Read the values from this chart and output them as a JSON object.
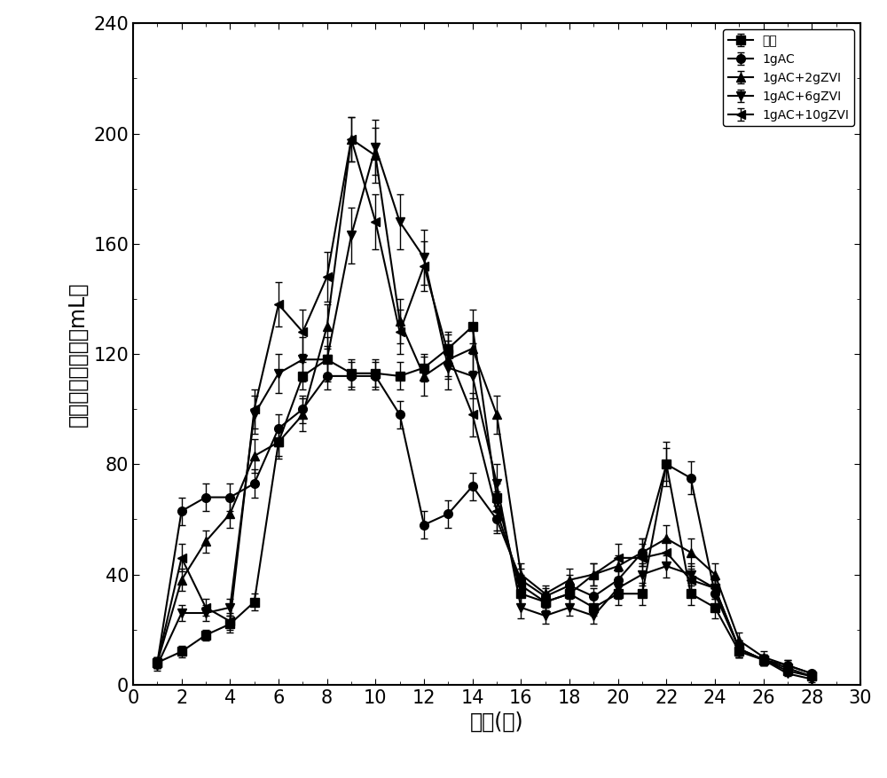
{
  "title": "",
  "xlabel": "时间(天)",
  "ylabel": "甲烷日均产气量（mL）",
  "xlim": [
    0,
    30
  ],
  "ylim": [
    0,
    240
  ],
  "xticks": [
    0,
    2,
    4,
    6,
    8,
    10,
    12,
    14,
    16,
    18,
    20,
    22,
    24,
    26,
    28,
    30
  ],
  "yticks": [
    0,
    40,
    80,
    120,
    160,
    200,
    240
  ],
  "series": [
    {
      "label": "空白",
      "marker": "s",
      "x": [
        1,
        2,
        3,
        4,
        5,
        6,
        7,
        8,
        9,
        10,
        11,
        12,
        13,
        14,
        15,
        16,
        17,
        18,
        19,
        20,
        21,
        22,
        23,
        24,
        25,
        26,
        27,
        28
      ],
      "y": [
        8,
        12,
        18,
        22,
        30,
        88,
        112,
        118,
        113,
        113,
        112,
        115,
        122,
        130,
        68,
        33,
        30,
        33,
        28,
        33,
        33,
        80,
        33,
        28,
        12,
        9,
        5,
        3
      ],
      "yerr": [
        2,
        2,
        2,
        3,
        3,
        5,
        5,
        5,
        5,
        5,
        5,
        5,
        5,
        6,
        5,
        4,
        3,
        4,
        3,
        4,
        4,
        6,
        4,
        4,
        2,
        2,
        1,
        1
      ]
    },
    {
      "label": "1gAC",
      "marker": "o",
      "x": [
        1,
        2,
        3,
        4,
        5,
        6,
        7,
        8,
        9,
        10,
        11,
        12,
        13,
        14,
        15,
        16,
        17,
        18,
        19,
        20,
        21,
        22,
        23,
        24,
        25,
        26,
        27,
        28
      ],
      "y": [
        8,
        63,
        68,
        68,
        73,
        93,
        100,
        112,
        112,
        112,
        98,
        58,
        62,
        72,
        60,
        38,
        32,
        36,
        32,
        38,
        48,
        80,
        75,
        33,
        13,
        9,
        7,
        4
      ],
      "yerr": [
        2,
        5,
        5,
        5,
        5,
        5,
        5,
        5,
        5,
        5,
        5,
        5,
        5,
        5,
        5,
        4,
        3,
        4,
        3,
        4,
        5,
        8,
        6,
        5,
        3,
        2,
        2,
        1
      ]
    },
    {
      "label": "1gAC+2gZVI",
      "marker": "^",
      "x": [
        1,
        2,
        3,
        4,
        5,
        6,
        7,
        8,
        9,
        10,
        11,
        12,
        13,
        14,
        15,
        16,
        17,
        18,
        19,
        20,
        21,
        22,
        23,
        24,
        25,
        26,
        27,
        28
      ],
      "y": [
        8,
        38,
        52,
        62,
        83,
        88,
        98,
        130,
        198,
        192,
        132,
        112,
        118,
        122,
        98,
        40,
        33,
        38,
        40,
        43,
        48,
        53,
        48,
        40,
        16,
        10,
        7,
        4
      ],
      "yerr": [
        2,
        4,
        4,
        5,
        6,
        6,
        6,
        8,
        8,
        10,
        8,
        7,
        7,
        8,
        7,
        4,
        3,
        4,
        4,
        4,
        5,
        5,
        5,
        4,
        3,
        2,
        2,
        1
      ]
    },
    {
      "label": "1gAC+6gZVI",
      "marker": "v",
      "x": [
        1,
        2,
        3,
        4,
        5,
        6,
        7,
        8,
        9,
        10,
        11,
        12,
        13,
        14,
        15,
        16,
        17,
        18,
        19,
        20,
        21,
        22,
        23,
        24,
        25,
        26,
        27,
        28
      ],
      "y": [
        7,
        26,
        26,
        28,
        98,
        113,
        118,
        118,
        163,
        195,
        168,
        155,
        115,
        112,
        73,
        28,
        25,
        28,
        25,
        35,
        40,
        43,
        40,
        35,
        13,
        9,
        4,
        2
      ],
      "yerr": [
        2,
        3,
        3,
        3,
        7,
        7,
        8,
        8,
        10,
        10,
        10,
        10,
        8,
        8,
        7,
        4,
        3,
        3,
        3,
        4,
        4,
        4,
        4,
        4,
        3,
        2,
        1,
        1
      ]
    },
    {
      "label": "1gAC+10gZVI",
      "marker": "<",
      "x": [
        1,
        2,
        3,
        4,
        5,
        6,
        7,
        8,
        9,
        10,
        11,
        12,
        13,
        14,
        15,
        16,
        17,
        18,
        19,
        20,
        21,
        22,
        23,
        24,
        25,
        26,
        27,
        28
      ],
      "y": [
        8,
        46,
        28,
        23,
        100,
        138,
        128,
        148,
        198,
        168,
        128,
        152,
        120,
        98,
        63,
        36,
        30,
        33,
        40,
        46,
        46,
        48,
        38,
        35,
        13,
        9,
        6,
        3
      ],
      "yerr": [
        2,
        5,
        3,
        3,
        7,
        8,
        8,
        9,
        8,
        10,
        8,
        9,
        8,
        8,
        7,
        4,
        3,
        4,
        4,
        5,
        5,
        5,
        4,
        4,
        3,
        2,
        2,
        1
      ]
    }
  ],
  "line_color": "#000000",
  "marker_size": 7,
  "linewidth": 1.5,
  "legend_loc": "upper right",
  "legend_fontsize": 15,
  "axis_fontsize": 17,
  "tick_fontsize": 15,
  "figsize": [
    10.0,
    8.77
  ],
  "dpi": 100
}
